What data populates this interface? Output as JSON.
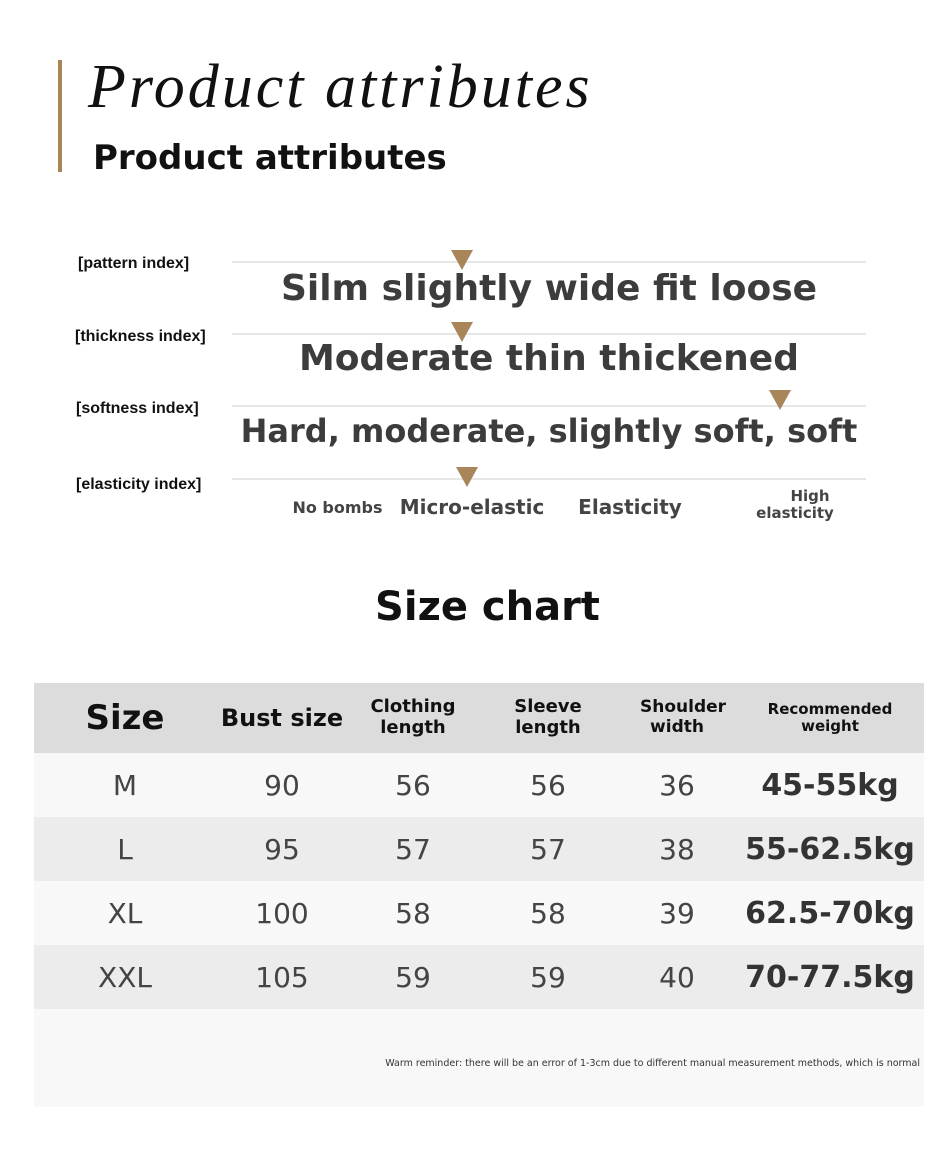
{
  "header": {
    "script_title": "Product attributes",
    "title": "Product attributes"
  },
  "attributes": [
    {
      "label": "[pattern index]",
      "value": "Silm slightly wide fit loose"
    },
    {
      "label": "[thickness index]",
      "value": "Moderate thin thickened"
    },
    {
      "label": "[softness index]",
      "value": "Hard, moderate, slightly soft, soft"
    },
    {
      "label": "[elasticity index]",
      "options": [
        "No bombs",
        "Micro-elastic",
        "Elasticity",
        "High",
        "elasticity"
      ]
    }
  ],
  "colors": {
    "accent": "#a8865a",
    "header_bg": "#dcdcdc"
  },
  "size_chart": {
    "title": "Size chart",
    "headers": [
      "Size",
      "Bust size",
      "Clothing length",
      "Sleeve length",
      "Shoulder width",
      "Recommended weight"
    ],
    "rows": [
      [
        "M",
        "90",
        "56",
        "56",
        "36",
        "45-55kg"
      ],
      [
        "L",
        "95",
        "57",
        "57",
        "38",
        "55-62.5kg"
      ],
      [
        "XL",
        "100",
        "58",
        "58",
        "39",
        "62.5-70kg"
      ],
      [
        "XXL",
        "105",
        "59",
        "59",
        "40",
        "70-77.5kg"
      ]
    ],
    "note": "Warm reminder: there will be an error of 1-3cm due to different manual measurement methods, which is normal"
  }
}
